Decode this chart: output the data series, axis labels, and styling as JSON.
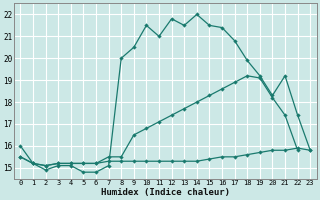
{
  "xlabel": "Humidex (Indice chaleur)",
  "xlim": [
    -0.5,
    23.5
  ],
  "ylim": [
    14.5,
    22.5
  ],
  "yticks": [
    15,
    16,
    17,
    18,
    19,
    20,
    21,
    22
  ],
  "xticks": [
    0,
    1,
    2,
    3,
    4,
    5,
    6,
    7,
    8,
    9,
    10,
    11,
    12,
    13,
    14,
    15,
    16,
    17,
    18,
    19,
    20,
    21,
    22,
    23
  ],
  "background_color": "#cce8e6",
  "grid_color": "#ffffff",
  "line_color": "#1a7a6e",
  "line1_x": [
    0,
    1,
    2,
    3,
    4,
    5,
    6,
    7,
    8,
    9,
    10,
    11,
    12,
    13,
    14,
    15,
    16,
    17,
    18,
    19,
    20,
    21,
    22,
    23
  ],
  "line1_y": [
    16.0,
    15.2,
    14.9,
    15.1,
    15.1,
    14.8,
    14.8,
    15.1,
    20.0,
    20.5,
    21.5,
    21.0,
    21.8,
    21.5,
    22.0,
    21.5,
    21.4,
    20.8,
    19.9,
    19.2,
    18.3,
    19.2,
    17.4,
    15.8
  ],
  "line2_x": [
    0,
    1,
    2,
    3,
    4,
    5,
    6,
    7,
    8,
    9,
    10,
    11,
    12,
    13,
    14,
    15,
    16,
    17,
    18,
    19,
    20,
    21,
    22,
    23
  ],
  "line2_y": [
    15.5,
    15.2,
    15.1,
    15.2,
    15.2,
    15.2,
    15.2,
    15.5,
    15.5,
    16.5,
    16.8,
    17.1,
    17.4,
    17.7,
    18.0,
    18.3,
    18.6,
    18.9,
    19.2,
    19.1,
    18.2,
    17.4,
    15.8,
    null
  ],
  "line3_x": [
    0,
    1,
    2,
    3,
    4,
    5,
    6,
    7,
    8,
    9,
    10,
    11,
    12,
    13,
    14,
    15,
    16,
    17,
    18,
    19,
    20,
    21,
    22,
    23
  ],
  "line3_y": [
    15.5,
    15.2,
    15.1,
    15.2,
    15.2,
    15.2,
    15.2,
    15.3,
    15.3,
    15.3,
    15.3,
    15.3,
    15.3,
    15.3,
    15.3,
    15.4,
    15.5,
    15.5,
    15.6,
    15.7,
    15.8,
    15.8,
    15.9,
    15.8
  ]
}
